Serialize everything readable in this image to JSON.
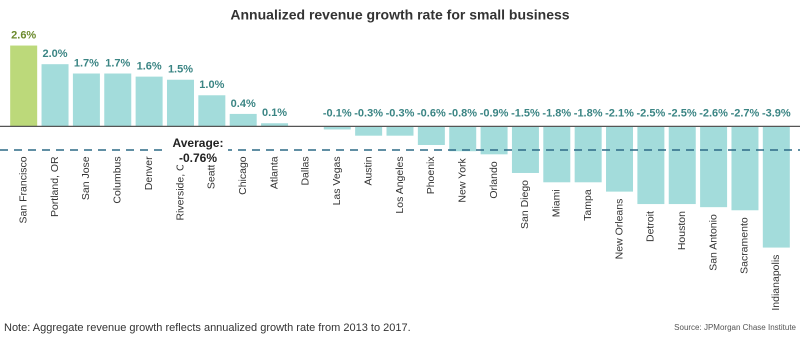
{
  "chart_data": {
    "type": "bar",
    "title": "Annualized revenue growth rate for small business",
    "categories": [
      "San Francisco",
      "Portland, OR",
      "San Jose",
      "Columbus",
      "Denver",
      "Riverside, CA",
      "Seattle",
      "Chicago",
      "Atlanta",
      "Dallas",
      "Las Vegas",
      "Austin",
      "Los Angeles",
      "Phoenix",
      "New York",
      "Orlando",
      "San Diego",
      "Miami",
      "Tampa",
      "New Orleans",
      "Detroit",
      "Houston",
      "San Antonio",
      "Sacramento",
      "Indianapolis"
    ],
    "values": [
      2.6,
      2.0,
      1.7,
      1.7,
      1.6,
      1.5,
      1.0,
      0.4,
      0.1,
      0,
      -0.1,
      -0.3,
      -0.3,
      -0.6,
      -0.8,
      -0.9,
      -1.5,
      -1.8,
      -1.8,
      -2.1,
      -2.5,
      -2.5,
      -2.6,
      -2.7,
      -3.9
    ],
    "value_labels": [
      "2.6%",
      "2.0%",
      "1.7%",
      "1.7%",
      "1.6%",
      "1.5%",
      "1.0%",
      "0.4%",
      "0.1%",
      null,
      "-0.1%",
      "-0.3%",
      "-0.3%",
      "-0.6%",
      "-0.8%",
      "-0.9%",
      "-1.5%",
      "-1.8%",
      "-1.8%",
      "-2.1%",
      "-2.5%",
      "-2.5%",
      "-2.6%",
      "-2.7%",
      "-3.9%"
    ],
    "colors": [
      "#bcd97a",
      "#a3dcdb",
      "#a3dcdb",
      "#a3dcdb",
      "#a3dcdb",
      "#a3dcdb",
      "#a3dcdb",
      "#a3dcdb",
      "#a3dcdb",
      "#a3dcdb",
      "#a3dcdb",
      "#a3dcdb",
      "#a3dcdb",
      "#a3dcdb",
      "#a3dcdb",
      "#a3dcdb",
      "#a3dcdb",
      "#a3dcdb",
      "#a3dcdb",
      "#a3dcdb",
      "#a3dcdb",
      "#a3dcdb",
      "#a3dcdb",
      "#a3dcdb",
      "#a3dcdb"
    ],
    "ylim": [
      -4.3,
      3.1
    ],
    "average": {
      "label": "Average:",
      "value": -0.76,
      "value_label": "-0.76%"
    },
    "note": "Note: Aggregate revenue growth reflects annualized growth rate from 2013 to 2017.",
    "source": "Source: JPMorgan Chase Institute"
  }
}
